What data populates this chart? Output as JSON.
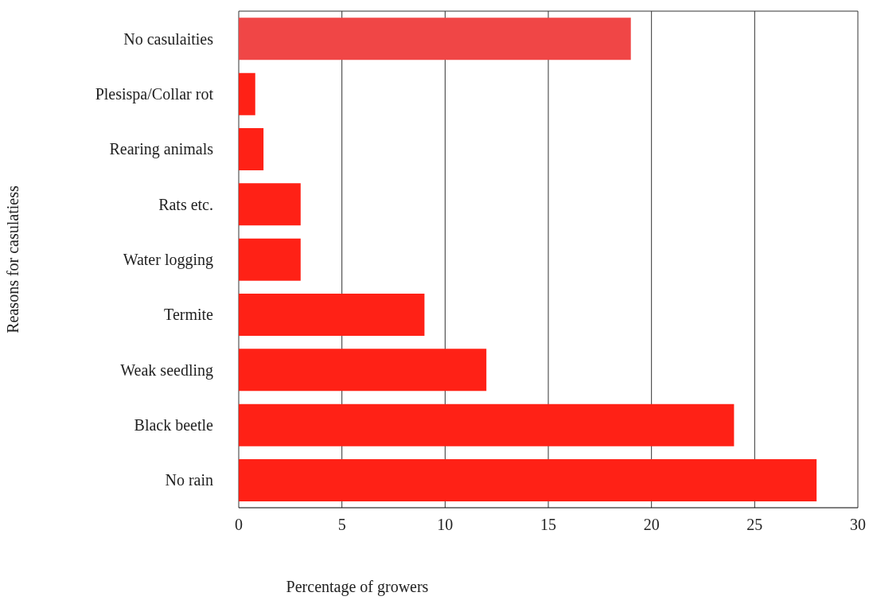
{
  "chart_data": {
    "type": "bar",
    "orientation": "horizontal",
    "categories": [
      "No casulaities",
      "Plesispa/Collar rot",
      "Rearing animals",
      "Rats etc.",
      "Water logging",
      "Termite",
      "Weak seedling",
      "Black beetle",
      "No rain"
    ],
    "values": [
      19,
      0.8,
      1.2,
      3,
      3,
      9,
      12,
      24,
      28
    ],
    "colors": [
      "#f04646",
      "#ff2116",
      "#ff2116",
      "#ff2116",
      "#ff2116",
      "#ff2116",
      "#ff2116",
      "#ff2116",
      "#ff2116"
    ],
    "xlim": [
      0,
      30
    ],
    "xticks": [
      0,
      5,
      10,
      15,
      20,
      25,
      30
    ],
    "grid": "x",
    "xlabel": "Percentage of growers",
    "ylabel": "Reasons for casulatiess"
  }
}
